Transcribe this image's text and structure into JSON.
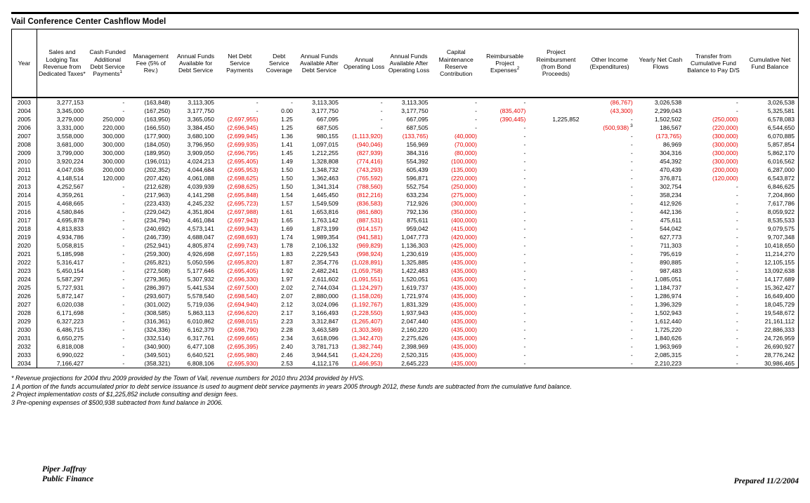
{
  "page": {
    "title": "Vail Conference Center Cashflow Model",
    "prepared": "Prepared 11/2/2004",
    "firm_line1": "Piper Jaffray",
    "firm_line2": "Public Finance"
  },
  "colors": {
    "negative": "#e60000",
    "text": "#000000"
  },
  "table": {
    "columns": [
      "Year",
      "Sales and Lodging Tax Revenue from Dedicated Taxes*",
      "Cash Funded Additional Debt Service Payments^1",
      "Management Fee (5% of Rev.)",
      "Annual Funds Available for Debt Service",
      "Net Debt Service Payments",
      "Debt Service Coverage",
      "Annual Funds Available After Debt Service",
      "Annual Operating Loss",
      "Annual Funds Available After Operating Loss",
      "Capital Maintenance Reserve Contribution",
      "Reimbursable Project Expenses^2",
      "Project Reimbursment (from Bond Proceeds)",
      "Other Income (Expenditures)",
      "Yearly Net Cash Flows",
      "Transfer from Cumulative Fund Balance to Pay D/S",
      "Cumulative Net Fund Balance"
    ],
    "rows": [
      [
        "2003",
        "3,277,153",
        "-",
        "(163,848)",
        "3,113,305",
        "-",
        "-",
        "3,113,305",
        "-",
        "3,113,305",
        "-",
        "-",
        "",
        "(86,767)",
        "3,026,538",
        "-",
        "3,026,538"
      ],
      [
        "2004",
        "3,345,000",
        "-",
        "(167,250)",
        "3,177,750",
        "-",
        "0.00",
        "3,177,750",
        "-",
        "3,177,750",
        "-",
        "(835,407)",
        "",
        "(43,300)",
        "2,299,043",
        "-",
        "5,325,581"
      ],
      [
        "2005",
        "3,279,000",
        "250,000",
        "(163,950)",
        "3,365,050",
        "(2,697,955)",
        "1.25",
        "667,095",
        "-",
        "667,095",
        "-",
        "(390,445)",
        "1,225,852",
        "-",
        "1,502,502",
        "(250,000)",
        "6,578,083"
      ],
      [
        "2006",
        "3,331,000",
        "220,000",
        "(166,550)",
        "3,384,450",
        "(2,696,945)",
        "1.25",
        "687,505",
        "-",
        "687,505",
        "-",
        "-",
        "",
        "(500,938)^3",
        "186,567",
        "(220,000)",
        "6,544,650"
      ],
      [
        "2007",
        "3,558,000",
        "300,000",
        "(177,900)",
        "3,680,100",
        "(2,699,945)",
        "1.36",
        "980,155",
        "(1,113,920)",
        "(133,765)",
        "(40,000)",
        "-",
        "",
        "-",
        "(173,765)",
        "(300,000)",
        "6,070,885"
      ],
      [
        "2008",
        "3,681,000",
        "300,000",
        "(184,050)",
        "3,796,950",
        "(2,699,935)",
        "1.41",
        "1,097,015",
        "(940,046)",
        "156,969",
        "(70,000)",
        "-",
        "",
        "-",
        "86,969",
        "(300,000)",
        "5,857,854"
      ],
      [
        "2009",
        "3,799,000",
        "300,000",
        "(189,950)",
        "3,909,050",
        "(2,696,795)",
        "1.45",
        "1,212,255",
        "(827,939)",
        "384,316",
        "(80,000)",
        "-",
        "",
        "-",
        "304,316",
        "(300,000)",
        "5,862,170"
      ],
      [
        "2010",
        "3,920,224",
        "300,000",
        "(196,011)",
        "4,024,213",
        "(2,695,405)",
        "1.49",
        "1,328,808",
        "(774,416)",
        "554,392",
        "(100,000)",
        "-",
        "",
        "-",
        "454,392",
        "(300,000)",
        "6,016,562"
      ],
      [
        "2011",
        "4,047,036",
        "200,000",
        "(202,352)",
        "4,044,684",
        "(2,695,953)",
        "1.50",
        "1,348,732",
        "(743,293)",
        "605,439",
        "(135,000)",
        "-",
        "",
        "-",
        "470,439",
        "(200,000)",
        "6,287,000"
      ],
      [
        "2012",
        "4,148,514",
        "120,000",
        "(207,426)",
        "4,061,088",
        "(2,698,625)",
        "1.50",
        "1,362,463",
        "(765,592)",
        "596,871",
        "(220,000)",
        "-",
        "",
        "-",
        "376,871",
        "(120,000)",
        "6,543,872"
      ],
      [
        "2013",
        "4,252,567",
        "-",
        "(212,628)",
        "4,039,939",
        "(2,698,625)",
        "1.50",
        "1,341,314",
        "(788,560)",
        "552,754",
        "(250,000)",
        "-",
        "",
        "-",
        "302,754",
        "-",
        "6,846,625"
      ],
      [
        "2014",
        "4,359,261",
        "-",
        "(217,963)",
        "4,141,298",
        "(2,695,848)",
        "1.54",
        "1,445,450",
        "(812,216)",
        "633,234",
        "(275,000)",
        "-",
        "",
        "-",
        "358,234",
        "-",
        "7,204,860"
      ],
      [
        "2015",
        "4,468,665",
        "-",
        "(223,433)",
        "4,245,232",
        "(2,695,723)",
        "1.57",
        "1,549,509",
        "(836,583)",
        "712,926",
        "(300,000)",
        "-",
        "",
        "-",
        "412,926",
        "-",
        "7,617,786"
      ],
      [
        "2016",
        "4,580,846",
        "-",
        "(229,042)",
        "4,351,804",
        "(2,697,988)",
        "1.61",
        "1,653,816",
        "(861,680)",
        "792,136",
        "(350,000)",
        "-",
        "",
        "-",
        "442,136",
        "-",
        "8,059,922"
      ],
      [
        "2017",
        "4,695,878",
        "-",
        "(234,794)",
        "4,461,084",
        "(2,697,943)",
        "1.65",
        "1,763,142",
        "(887,531)",
        "875,611",
        "(400,000)",
        "-",
        "",
        "-",
        "475,611",
        "-",
        "8,535,533"
      ],
      [
        "2018",
        "4,813,833",
        "-",
        "(240,692)",
        "4,573,141",
        "(2,699,943)",
        "1.69",
        "1,873,199",
        "(914,157)",
        "959,042",
        "(415,000)",
        "-",
        "",
        "-",
        "544,042",
        "-",
        "9,079,575"
      ],
      [
        "2019",
        "4,934,786",
        "-",
        "(246,739)",
        "4,688,047",
        "(2,698,693)",
        "1.74",
        "1,989,354",
        "(941,581)",
        "1,047,773",
        "(420,000)",
        "-",
        "",
        "-",
        "627,773",
        "-",
        "9,707,348"
      ],
      [
        "2020",
        "5,058,815",
        "-",
        "(252,941)",
        "4,805,874",
        "(2,699,743)",
        "1.78",
        "2,106,132",
        "(969,829)",
        "1,136,303",
        "(425,000)",
        "-",
        "",
        "-",
        "711,303",
        "-",
        "10,418,650"
      ],
      [
        "2021",
        "5,185,998",
        "-",
        "(259,300)",
        "4,926,698",
        "(2,697,155)",
        "1.83",
        "2,229,543",
        "(998,924)",
        "1,230,619",
        "(435,000)",
        "-",
        "",
        "-",
        "795,619",
        "-",
        "11,214,270"
      ],
      [
        "2022",
        "5,316,417",
        "-",
        "(265,821)",
        "5,050,596",
        "(2,695,820)",
        "1.87",
        "2,354,776",
        "(1,028,891)",
        "1,325,885",
        "(435,000)",
        "-",
        "",
        "-",
        "890,885",
        "-",
        "12,105,155"
      ],
      [
        "2023",
        "5,450,154",
        "-",
        "(272,508)",
        "5,177,646",
        "(2,695,405)",
        "1.92",
        "2,482,241",
        "(1,059,758)",
        "1,422,483",
        "(435,000)",
        "-",
        "",
        "-",
        "987,483",
        "-",
        "13,092,638"
      ],
      [
        "2024",
        "5,587,297",
        "-",
        "(279,365)",
        "5,307,932",
        "(2,696,330)",
        "1.97",
        "2,611,602",
        "(1,091,551)",
        "1,520,051",
        "(435,000)",
        "-",
        "",
        "-",
        "1,085,051",
        "-",
        "14,177,689"
      ],
      [
        "2025",
        "5,727,931",
        "-",
        "(286,397)",
        "5,441,534",
        "(2,697,500)",
        "2.02",
        "2,744,034",
        "(1,124,297)",
        "1,619,737",
        "(435,000)",
        "-",
        "",
        "-",
        "1,184,737",
        "-",
        "15,362,427"
      ],
      [
        "2026",
        "5,872,147",
        "-",
        "(293,607)",
        "5,578,540",
        "(2,698,540)",
        "2.07",
        "2,880,000",
        "(1,158,026)",
        "1,721,974",
        "(435,000)",
        "-",
        "",
        "-",
        "1,286,974",
        "-",
        "16,649,400"
      ],
      [
        "2027",
        "6,020,038",
        "-",
        "(301,002)",
        "5,719,036",
        "(2,694,940)",
        "2.12",
        "3,024,096",
        "(1,192,767)",
        "1,831,329",
        "(435,000)",
        "-",
        "",
        "-",
        "1,396,329",
        "-",
        "18,045,729"
      ],
      [
        "2028",
        "6,171,698",
        "-",
        "(308,585)",
        "5,863,113",
        "(2,696,620)",
        "2.17",
        "3,166,493",
        "(1,228,550)",
        "1,937,943",
        "(435,000)",
        "-",
        "",
        "-",
        "1,502,943",
        "-",
        "19,548,672"
      ],
      [
        "2029",
        "6,327,223",
        "-",
        "(316,361)",
        "6,010,862",
        "(2,698,015)",
        "2.23",
        "3,312,847",
        "(1,265,407)",
        "2,047,440",
        "(435,000)",
        "-",
        "",
        "-",
        "1,612,440",
        "-",
        "21,161,112"
      ],
      [
        "2030",
        "6,486,715",
        "-",
        "(324,336)",
        "6,162,379",
        "(2,698,790)",
        "2.28",
        "3,463,589",
        "(1,303,369)",
        "2,160,220",
        "(435,000)",
        "-",
        "",
        "-",
        "1,725,220",
        "-",
        "22,886,333"
      ],
      [
        "2031",
        "6,650,275",
        "-",
        "(332,514)",
        "6,317,761",
        "(2,699,665)",
        "2.34",
        "3,618,096",
        "(1,342,470)",
        "2,275,626",
        "(435,000)",
        "-",
        "",
        "-",
        "1,840,626",
        "-",
        "24,726,959"
      ],
      [
        "2032",
        "6,818,008",
        "-",
        "(340,900)",
        "6,477,108",
        "(2,695,395)",
        "2.40",
        "3,781,713",
        "(1,382,744)",
        "2,398,969",
        "(435,000)",
        "-",
        "",
        "-",
        "1,963,969",
        "-",
        "26,690,927"
      ],
      [
        "2033",
        "6,990,022",
        "-",
        "(349,501)",
        "6,640,521",
        "(2,695,980)",
        "2.46",
        "3,944,541",
        "(1,424,226)",
        "2,520,315",
        "(435,000)",
        "-",
        "",
        "-",
        "2,085,315",
        "-",
        "28,776,242"
      ],
      [
        "2034",
        "7,166,427",
        "-",
        "(358,321)",
        "6,808,106",
        "(2,695,930)",
        "2.53",
        "4,112,176",
        "(1,466,953)",
        "2,645,223",
        "(435,000)",
        "-",
        "",
        "-",
        "2,210,223",
        "-",
        "30,986,465"
      ]
    ]
  },
  "footnotes": [
    "* Revenue projections for 2004 thru 2009 provided by the Town of Vail, revenue numbers for 2010 thru 2034 provided by HVS.",
    "1  A portion of the funds accumulated prior to debt service issuance is used to augment debt service payments in years 2005 through 2012, these funds are subtracted from the cumulative fund balance.",
    "2  Project implementation costs of $1,225,852 include consulting and design fees.",
    "3  Pre-opening expenses of $500,938 subtracted from fund balance in 2006."
  ]
}
